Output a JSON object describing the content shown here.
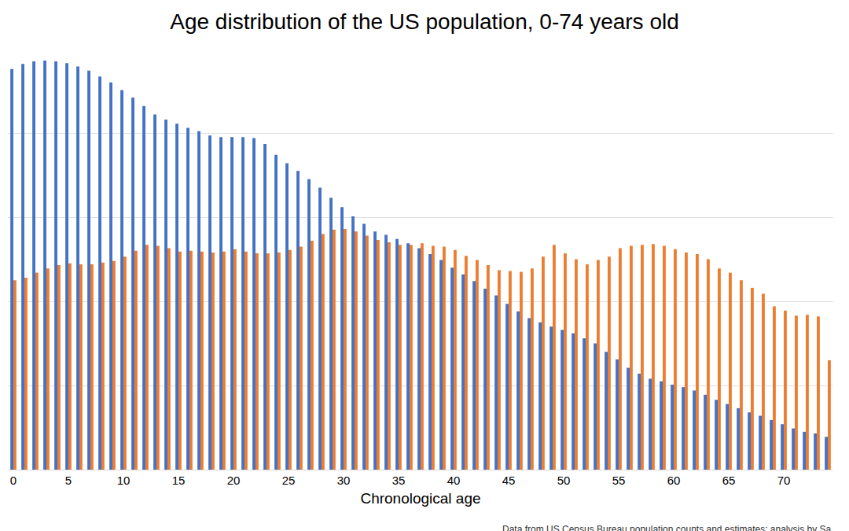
{
  "chart_data": {
    "type": "bar",
    "title": "Age distribution of the US population, 0-74 years old",
    "x_label": "Chronological age",
    "annotation": "Data from US Census Bureau population counts and estimates; analysis by Sa",
    "x": [
      0,
      1,
      2,
      3,
      4,
      5,
      6,
      7,
      8,
      9,
      10,
      11,
      12,
      13,
      14,
      15,
      16,
      17,
      18,
      19,
      20,
      21,
      22,
      23,
      24,
      25,
      26,
      27,
      28,
      29,
      30,
      31,
      32,
      33,
      34,
      35,
      36,
      37,
      38,
      39,
      40,
      41,
      42,
      43,
      44,
      45,
      46,
      47,
      48,
      49,
      50,
      51,
      52,
      53,
      54,
      55,
      56,
      57,
      58,
      59,
      60,
      61,
      62,
      63,
      64,
      65,
      66,
      67,
      68,
      69,
      70,
      71,
      72,
      73,
      74
    ],
    "series": [
      {
        "color": "#4472c4",
        "values": [
          4.76,
          4.82,
          4.85,
          4.86,
          4.85,
          4.83,
          4.79,
          4.74,
          4.67,
          4.6,
          4.51,
          4.42,
          4.32,
          4.22,
          4.16,
          4.11,
          4.06,
          4.02,
          3.97,
          3.95,
          3.95,
          3.95,
          3.94,
          3.87,
          3.74,
          3.64,
          3.55,
          3.45,
          3.35,
          3.23,
          3.12,
          3.01,
          2.92,
          2.83,
          2.79,
          2.74,
          2.69,
          2.63,
          2.56,
          2.49,
          2.4,
          2.32,
          2.24,
          2.15,
          2.07,
          1.97,
          1.88,
          1.8,
          1.75,
          1.7,
          1.66,
          1.62,
          1.56,
          1.5,
          1.4,
          1.31,
          1.21,
          1.14,
          1.08,
          1.05,
          1.01,
          0.98,
          0.94,
          0.89,
          0.83,
          0.78,
          0.73,
          0.68,
          0.64,
          0.59,
          0.54,
          0.49,
          0.45,
          0.43,
          0.39
        ]
      },
      {
        "color": "#ed7d31",
        "values": [
          2.25,
          2.28,
          2.34,
          2.39,
          2.43,
          2.45,
          2.44,
          2.44,
          2.46,
          2.48,
          2.53,
          2.6,
          2.67,
          2.66,
          2.63,
          2.59,
          2.6,
          2.59,
          2.58,
          2.59,
          2.62,
          2.59,
          2.57,
          2.57,
          2.58,
          2.61,
          2.65,
          2.72,
          2.8,
          2.85,
          2.86,
          2.83,
          2.78,
          2.73,
          2.7,
          2.67,
          2.67,
          2.69,
          2.66,
          2.65,
          2.61,
          2.54,
          2.49,
          2.43,
          2.37,
          2.36,
          2.35,
          2.39,
          2.53,
          2.67,
          2.57,
          2.5,
          2.44,
          2.49,
          2.53,
          2.63,
          2.66,
          2.67,
          2.68,
          2.66,
          2.62,
          2.58,
          2.56,
          2.5,
          2.39,
          2.34,
          2.25,
          2.16,
          2.09,
          1.94,
          1.89,
          1.83,
          1.84,
          1.82,
          1.3
        ]
      }
    ],
    "xlim": [
      -0.5,
      74.5
    ],
    "xticks": [
      0,
      5,
      10,
      15,
      20,
      25,
      30,
      35,
      40,
      45,
      50,
      55,
      60,
      65,
      70
    ],
    "ylim": [
      0,
      5
    ],
    "yticks": [
      0,
      1,
      2,
      3,
      4,
      5
    ],
    "grid": true,
    "tick_labels": "x"
  }
}
